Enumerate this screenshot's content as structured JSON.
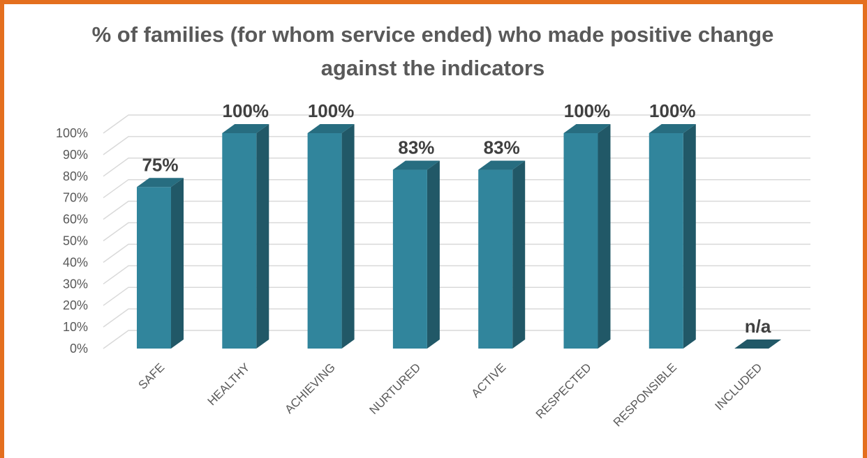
{
  "chart_data": {
    "type": "bar",
    "title": "% of families (for whom service ended) who made positive change against the indicators",
    "categories": [
      "SAFE",
      "HEALTHY",
      "ACHIEVING",
      "NURTURED",
      "ACTIVE",
      "RESPECTED",
      "RESPONSIBLE",
      "INCLUDED"
    ],
    "values": [
      75,
      100,
      100,
      83,
      83,
      100,
      100,
      null
    ],
    "data_labels": [
      "75%",
      "100%",
      "100%",
      "83%",
      "83%",
      "100%",
      "100%",
      "n/a"
    ],
    "y_ticks": [
      "0%",
      "10%",
      "20%",
      "30%",
      "40%",
      "50%",
      "60%",
      "70%",
      "80%",
      "90%",
      "100%"
    ],
    "ylim": [
      0,
      100
    ],
    "grid": true,
    "legend": "none",
    "three_d": true,
    "colors": {
      "bar_front": "#31859c",
      "bar_side": "#215867",
      "bar_top": "#276d80",
      "grid": "#d9d9d9",
      "frame": "#e46f1e",
      "title": "#595959",
      "label": "#404040",
      "tick": "#595959"
    }
  }
}
